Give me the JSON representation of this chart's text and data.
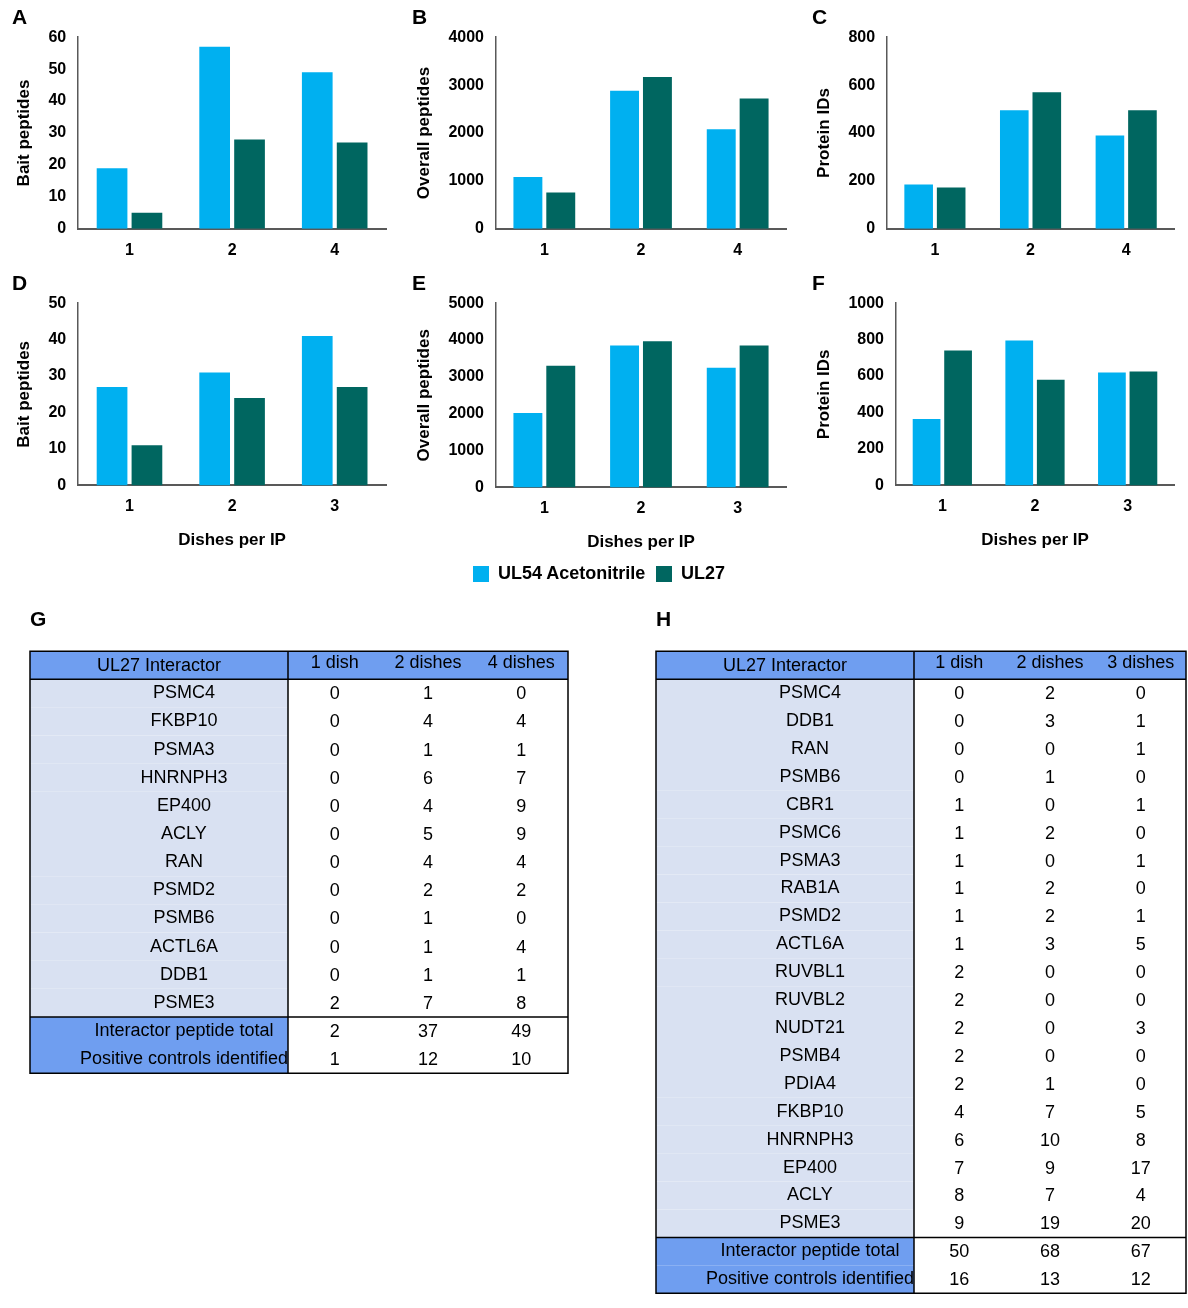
{
  "chart_data": [
    {
      "type": "bar",
      "title": "A",
      "ylabel": "Bait peptides",
      "categories": [
        "1",
        "2",
        "4"
      ],
      "ylim": [
        0,
        60
      ],
      "yticks": [
        0,
        10,
        20,
        30,
        40,
        50,
        60
      ],
      "grid": false,
      "legend": false,
      "series": [
        {
          "color": "#00b0f0",
          "values": [
            19,
            57,
            49
          ]
        },
        {
          "color": "#006660",
          "values": [
            5,
            28,
            27
          ]
        }
      ]
    },
    {
      "type": "bar",
      "title": "B",
      "ylabel": "Overall peptides",
      "categories": [
        "1",
        "2",
        "4"
      ],
      "ylim": [
        0,
        4000
      ],
      "yticks": [
        0,
        1000,
        2000,
        3000,
        4000
      ],
      "grid": false,
      "legend": false,
      "series": [
        {
          "color": "#00b0f0",
          "values": [
            1080,
            2880,
            2080
          ]
        },
        {
          "color": "#006660",
          "values": [
            760,
            3170,
            2720
          ]
        }
      ]
    },
    {
      "type": "bar",
      "title": "C",
      "ylabel": "Protein IDs",
      "categories": [
        "1",
        "2",
        "4"
      ],
      "ylim": [
        0,
        800
      ],
      "yticks": [
        0,
        200,
        400,
        600,
        800
      ],
      "grid": false,
      "legend": false,
      "series": [
        {
          "color": "#00b0f0",
          "values": [
            185,
            495,
            390
          ]
        },
        {
          "color": "#006660",
          "values": [
            172,
            570,
            495
          ]
        }
      ]
    },
    {
      "type": "bar",
      "title": "D",
      "ylabel": "Bait peptides",
      "xlabel": "Dishes per IP",
      "categories": [
        "1",
        "2",
        "3"
      ],
      "ylim": [
        0,
        50
      ],
      "yticks": [
        0,
        10,
        20,
        30,
        40,
        50
      ],
      "grid": false,
      "legend": false,
      "series": [
        {
          "color": "#00b0f0",
          "values": [
            27,
            31,
            41
          ]
        },
        {
          "color": "#006660",
          "values": [
            11,
            24,
            27
          ]
        }
      ]
    },
    {
      "type": "bar",
      "title": "E",
      "ylabel": "Overall peptides",
      "xlabel": "Dishes per IP",
      "categories": [
        "1",
        "2",
        "3"
      ],
      "ylim": [
        0,
        5000
      ],
      "yticks": [
        0,
        1000,
        2000,
        3000,
        4000,
        5000
      ],
      "grid": false,
      "legend": "bottom",
      "series": [
        {
          "name": "UL54 Acetonitrile",
          "color": "#00b0f0",
          "values": [
            2020,
            3850,
            3250
          ]
        },
        {
          "name": "UL27",
          "color": "#006660",
          "values": [
            3300,
            3970,
            3850
          ]
        }
      ]
    },
    {
      "type": "bar",
      "title": "F",
      "ylabel": "Protein IDs",
      "xlabel": "Dishes per IP",
      "categories": [
        "1",
        "2",
        "3"
      ],
      "ylim": [
        0,
        1000
      ],
      "yticks": [
        0,
        200,
        400,
        600,
        800,
        1000
      ],
      "grid": false,
      "legend": false,
      "series": [
        {
          "color": "#00b0f0",
          "values": [
            365,
            795,
            620
          ]
        },
        {
          "color": "#006660",
          "values": [
            740,
            580,
            625
          ]
        }
      ]
    },
    {
      "type": "heatmap",
      "title": "G",
      "ylabel": "UL27 Interactor",
      "categories": [
        "1 dish",
        "2 dishes",
        "4 dishes"
      ],
      "data_labels": true,
      "y_categories": [
        "PSMC4",
        "FKBP10",
        "PSMA3",
        "HNRNPH3",
        "EP400",
        "ACLY",
        "RAN",
        "PSMD2",
        "PSMB6",
        "ACTL6A",
        "DDB1",
        "PSME3",
        "Interactor peptide total",
        "Positive controls identified"
      ],
      "cells": [
        [
          0,
          1,
          0
        ],
        [
          0,
          4,
          4
        ],
        [
          0,
          1,
          1
        ],
        [
          0,
          6,
          7
        ],
        [
          0,
          4,
          9
        ],
        [
          0,
          5,
          9
        ],
        [
          0,
          4,
          4
        ],
        [
          0,
          2,
          2
        ],
        [
          0,
          1,
          0
        ],
        [
          0,
          1,
          4
        ],
        [
          0,
          1,
          1
        ],
        [
          2,
          7,
          8
        ],
        [
          2,
          37,
          49
        ],
        [
          1,
          12,
          10
        ]
      ]
    },
    {
      "type": "heatmap",
      "title": "H",
      "ylabel": "UL27 Interactor",
      "categories": [
        "1 dish",
        "2 dishes",
        "3 dishes"
      ],
      "data_labels": true,
      "y_categories": [
        "PSMC4",
        "DDB1",
        "RAN",
        "PSMB6",
        "CBR1",
        "PSMC6",
        "PSMA3",
        "RAB1A",
        "PSMD2",
        "ACTL6A",
        "RUVBL1",
        "RUVBL2",
        "NUDT21",
        "PSMB4",
        "PDIA4",
        "FKBP10",
        "HNRNPH3",
        "EP400",
        "ACLY",
        "PSME3",
        "Interactor peptide total",
        "Positive controls identified"
      ],
      "cells": [
        [
          0,
          2,
          0
        ],
        [
          0,
          3,
          1
        ],
        [
          0,
          0,
          1
        ],
        [
          0,
          1,
          0
        ],
        [
          1,
          0,
          1
        ],
        [
          1,
          2,
          0
        ],
        [
          1,
          0,
          1
        ],
        [
          1,
          2,
          0
        ],
        [
          1,
          2,
          1
        ],
        [
          1,
          3,
          5
        ],
        [
          2,
          0,
          0
        ],
        [
          2,
          0,
          0
        ],
        [
          2,
          0,
          3
        ],
        [
          2,
          0,
          0
        ],
        [
          2,
          1,
          0
        ],
        [
          4,
          7,
          5
        ],
        [
          6,
          10,
          8
        ],
        [
          7,
          9,
          17
        ],
        [
          8,
          7,
          4
        ],
        [
          9,
          19,
          20
        ],
        [
          50,
          68,
          67
        ],
        [
          16,
          13,
          12
        ]
      ]
    }
  ]
}
